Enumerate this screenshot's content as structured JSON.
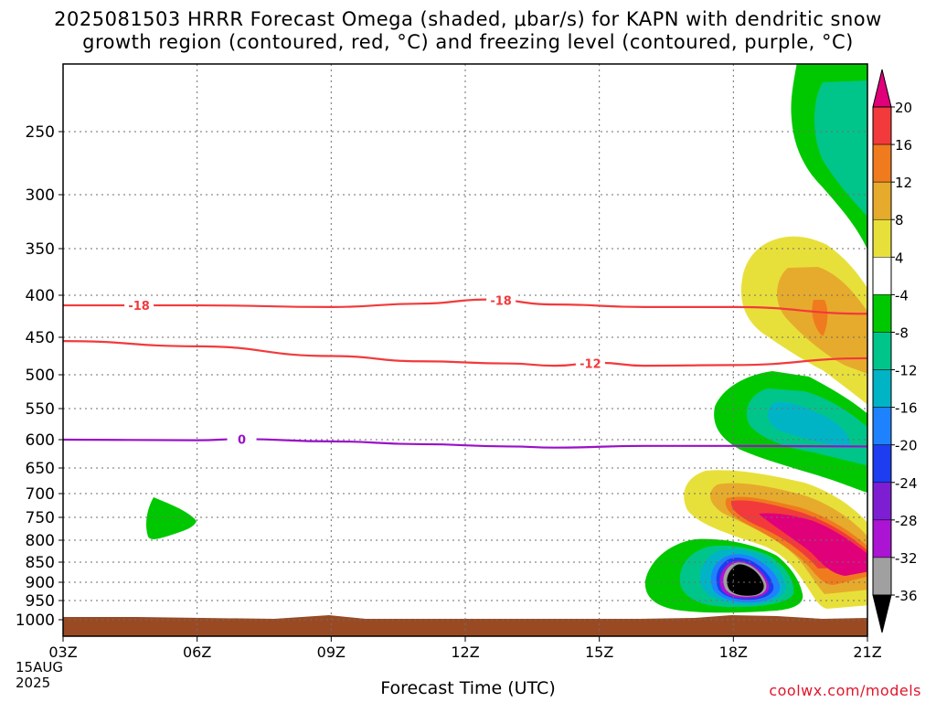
{
  "title": {
    "line1": "2025081503 HRRR Forecast Omega (shaded, μbar/s) for KAPN with dendritic snow",
    "line2": "growth region (contoured, red, °C) and freezing level (contoured, purple, °C)"
  },
  "xlabel": "Forecast Time (UTC)",
  "credit": "coolwx.com/models",
  "date_day": "15AUG",
  "date_year": "2025",
  "chart_data": {
    "type": "heatmap",
    "x_ticks": [
      "03Z",
      "06Z",
      "09Z",
      "12Z",
      "15Z",
      "18Z",
      "21Z"
    ],
    "x_hours": [
      3,
      6,
      9,
      12,
      15,
      18,
      21
    ],
    "y_ticks": [
      250,
      300,
      350,
      400,
      450,
      500,
      550,
      600,
      650,
      700,
      750,
      800,
      850,
      900,
      950,
      1000
    ],
    "ylim": [
      200,
      1000
    ],
    "grid": true,
    "colorbar": {
      "labels": [
        "20",
        "16",
        "12",
        "8",
        "4",
        "-4",
        "-8",
        "-12",
        "-16",
        "-20",
        "-24",
        "-28",
        "-32",
        "-36"
      ],
      "colors": [
        "#e0007a",
        "#f23a3c",
        "#f07b1e",
        "#e6ab2c",
        "#e8e03a",
        "#ffffff",
        "#00c800",
        "#00c58a",
        "#00b4c6",
        "#1e82ff",
        "#1e3cf0",
        "#7d1ed2",
        "#aa14d2",
        "#a0a0a0",
        "#000000"
      ]
    },
    "contours": [
      {
        "label": "-18",
        "color": "#f23a3c",
        "levels": [
          [
            3,
            412
          ],
          [
            6,
            412
          ],
          [
            9,
            414
          ],
          [
            11,
            410
          ],
          [
            12.5,
            405
          ],
          [
            14,
            411
          ],
          [
            16,
            414
          ],
          [
            18,
            414
          ],
          [
            21,
            422
          ]
        ]
      },
      {
        "label": "-12",
        "color": "#f23a3c",
        "levels": [
          [
            3,
            455
          ],
          [
            6,
            462
          ],
          [
            9,
            475
          ],
          [
            11,
            482
          ],
          [
            13,
            485
          ],
          [
            14,
            488
          ],
          [
            15,
            484
          ],
          [
            16,
            488
          ],
          [
            18,
            487
          ],
          [
            21,
            478
          ]
        ]
      },
      {
        "label": "0",
        "color": "#9a10c8",
        "levels": [
          [
            3,
            600
          ],
          [
            6,
            601
          ],
          [
            7,
            599
          ],
          [
            9,
            603
          ],
          [
            11,
            608
          ],
          [
            13,
            612
          ],
          [
            14,
            614
          ],
          [
            16,
            611
          ],
          [
            18,
            611
          ],
          [
            21,
            612
          ]
        ]
      }
    ],
    "omega_regions": [
      {
        "name": "negative-upper",
        "fill": "#00c800"
      },
      {
        "name": "positive-upper",
        "fill": "#e8e03a"
      },
      {
        "name": "negative-mid",
        "fill": "#00c800"
      },
      {
        "name": "positive-lower",
        "fill": "#e8e03a"
      },
      {
        "name": "negative-lower",
        "fill": "#00c800"
      },
      {
        "name": "negative-small",
        "fill": "#00c800"
      }
    ],
    "terrain": {
      "fill": "#9a4a23"
    }
  }
}
